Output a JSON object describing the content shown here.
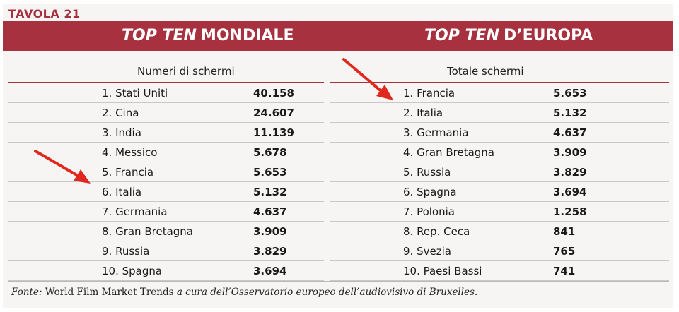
{
  "table_label": "TAVOLA 21",
  "left": {
    "title_em": "TOP TEN",
    "title_rest": "MONDIALE",
    "column_header": "Numeri di schermi",
    "rows": [
      {
        "name": "1. Stati Uniti",
        "value": "40.158"
      },
      {
        "name": "2. Cina",
        "value": "24.607"
      },
      {
        "name": "3. India",
        "value": "11.139"
      },
      {
        "name": "4. Messico",
        "value": "5.678"
      },
      {
        "name": "5. Francia",
        "value": "5.653"
      },
      {
        "name": "6. Italia",
        "value": "5.132"
      },
      {
        "name": "7. Germania",
        "value": "4.637"
      },
      {
        "name": "8. Gran Bretagna",
        "value": "3.909"
      },
      {
        "name": "9. Russia",
        "value": "3.829"
      },
      {
        "name": "10. Spagna",
        "value": "3.694"
      }
    ]
  },
  "right": {
    "title_em": "TOP TEN",
    "title_rest": "D’EUROPA",
    "column_header": "Totale schermi",
    "rows": [
      {
        "name": "1. Francia",
        "value": "5.653"
      },
      {
        "name": "2. Italia",
        "value": "5.132"
      },
      {
        "name": "3. Germania",
        "value": "4.637"
      },
      {
        "name": "4. Gran Bretagna",
        "value": "3.909"
      },
      {
        "name": "5. Russia",
        "value": "3.829"
      },
      {
        "name": "6. Spagna",
        "value": "3.694"
      },
      {
        "name": "7. Polonia",
        "value": "1.258"
      },
      {
        "name": "8. Rep. Ceca",
        "value": "841"
      },
      {
        "name": "9. Svezia",
        "value": "765"
      },
      {
        "name": "10. Paesi Bassi",
        "value": "741"
      }
    ]
  },
  "footnote": {
    "label": "Fonte:",
    "source": "World Film Market Trends",
    "rest": "a cura dell’Osservatorio europeo dell’audiovisivo di Bruxelles."
  },
  "colors": {
    "accent": "#a7313f",
    "arrow": "#e0281e"
  },
  "annotations": [
    {
      "name": "arrow-to-italia-world",
      "icon": "red-arrow-icon"
    },
    {
      "name": "arrow-to-italia-europe",
      "icon": "red-arrow-icon"
    }
  ]
}
